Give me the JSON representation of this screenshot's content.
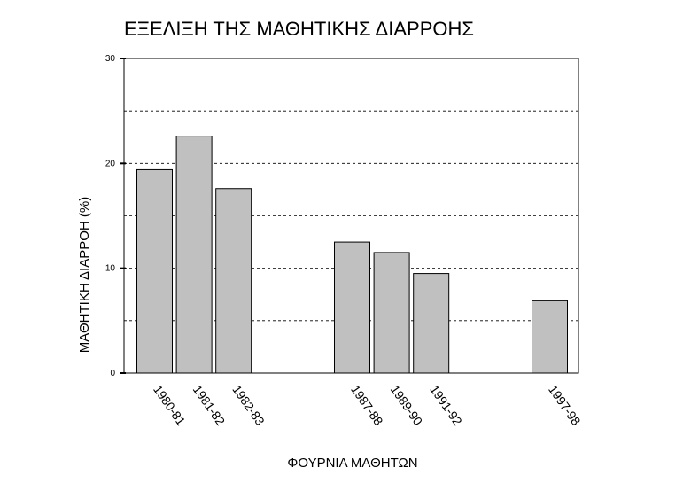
{
  "chart_data": {
    "type": "bar",
    "title": "ΕΞΕΛΙΞΗ ΤΗΣ ΜΑΘΗΤΙΚΗΣ ΔΙΑΡΡΟΗΣ",
    "x_label": "ΦΟΥΡΝΙΑ ΜΑΘΗΤΩΝ",
    "y_label": "ΜΑΘΗΤΙΚΗ ΔΙΑΡΡΟΗ (%)",
    "categories": [
      "1980-81",
      "1981-82",
      "1982-83",
      null,
      null,
      "1987-88",
      "1989-90",
      "1991-92",
      null,
      null,
      "1997-98"
    ],
    "values": [
      19.4,
      22.6,
      17.6,
      null,
      null,
      12.5,
      11.5,
      9.5,
      null,
      null,
      6.9
    ],
    "color": "#c0c0c0",
    "ylim": [
      0,
      30
    ],
    "yticks": [
      0,
      10,
      20,
      30
    ],
    "grid_lines": [
      5,
      10,
      15,
      20,
      25
    ],
    "grid": true
  }
}
